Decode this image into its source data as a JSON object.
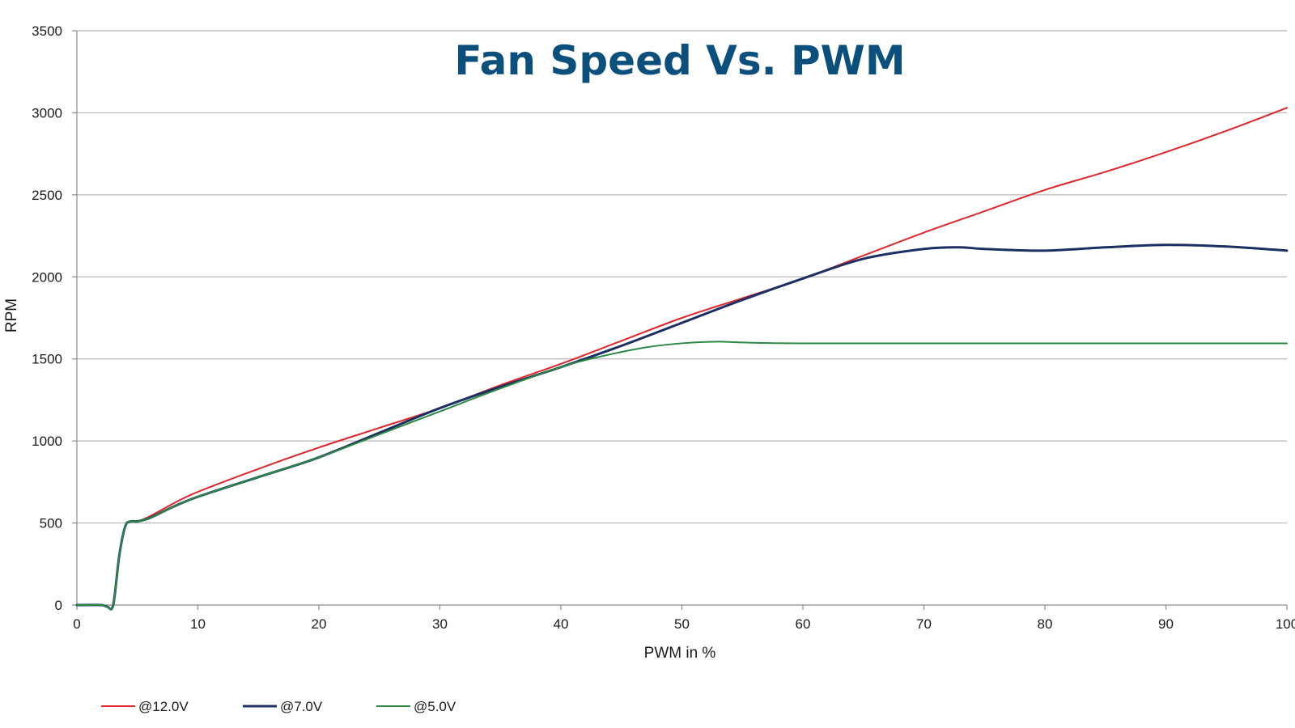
{
  "chart_data": {
    "type": "line",
    "title": "Fan Speed Vs. PWM",
    "xlabel": "PWM in %",
    "ylabel": "RPM",
    "xlim": [
      0,
      100
    ],
    "ylim": [
      0,
      3500
    ],
    "xticks": [
      0,
      10,
      20,
      30,
      40,
      50,
      60,
      70,
      80,
      90,
      100
    ],
    "yticks": [
      0,
      500,
      1000,
      1500,
      2000,
      2500,
      3000,
      3500
    ],
    "grid": "horizontal",
    "legend_position": "bottom-left",
    "series": [
      {
        "name": "@12.0V",
        "color": "#e0262b",
        "points": [
          [
            0,
            0
          ],
          [
            2,
            0
          ],
          [
            2.5,
            -10
          ],
          [
            3,
            0
          ],
          [
            3.5,
            300
          ],
          [
            4,
            480
          ],
          [
            4.5,
            510
          ],
          [
            5,
            510
          ],
          [
            6,
            540
          ],
          [
            8,
            620
          ],
          [
            10,
            690
          ],
          [
            15,
            830
          ],
          [
            20,
            960
          ],
          [
            25,
            1080
          ],
          [
            30,
            1200
          ],
          [
            35,
            1340
          ],
          [
            40,
            1470
          ],
          [
            45,
            1610
          ],
          [
            50,
            1750
          ],
          [
            55,
            1870
          ],
          [
            60,
            1990
          ],
          [
            65,
            2130
          ],
          [
            70,
            2270
          ],
          [
            75,
            2400
          ],
          [
            80,
            2530
          ],
          [
            85,
            2640
          ],
          [
            90,
            2760
          ],
          [
            95,
            2890
          ],
          [
            100,
            3030
          ]
        ]
      },
      {
        "name": "@7.0V",
        "color": "#1c2f63",
        "points": [
          [
            0,
            0
          ],
          [
            2,
            0
          ],
          [
            2.5,
            -10
          ],
          [
            3,
            0
          ],
          [
            3.5,
            300
          ],
          [
            4,
            480
          ],
          [
            4.5,
            510
          ],
          [
            5,
            510
          ],
          [
            6,
            530
          ],
          [
            8,
            600
          ],
          [
            10,
            660
          ],
          [
            15,
            780
          ],
          [
            20,
            900
          ],
          [
            25,
            1050
          ],
          [
            30,
            1200
          ],
          [
            35,
            1330
          ],
          [
            40,
            1450
          ],
          [
            45,
            1580
          ],
          [
            50,
            1720
          ],
          [
            55,
            1860
          ],
          [
            60,
            1990
          ],
          [
            65,
            2110
          ],
          [
            70,
            2170
          ],
          [
            73,
            2180
          ],
          [
            75,
            2170
          ],
          [
            80,
            2160
          ],
          [
            85,
            2180
          ],
          [
            90,
            2195
          ],
          [
            95,
            2185
          ],
          [
            100,
            2160
          ]
        ]
      },
      {
        "name": "@5.0V",
        "color": "#2a8a43",
        "points": [
          [
            0,
            0
          ],
          [
            2,
            0
          ],
          [
            2.5,
            -10
          ],
          [
            3,
            0
          ],
          [
            3.5,
            300
          ],
          [
            4,
            480
          ],
          [
            4.5,
            510
          ],
          [
            5,
            510
          ],
          [
            6,
            530
          ],
          [
            8,
            600
          ],
          [
            10,
            660
          ],
          [
            15,
            780
          ],
          [
            20,
            900
          ],
          [
            25,
            1040
          ],
          [
            30,
            1180
          ],
          [
            35,
            1320
          ],
          [
            40,
            1450
          ],
          [
            43,
            1510
          ],
          [
            47,
            1570
          ],
          [
            50,
            1595
          ],
          [
            53,
            1605
          ],
          [
            55,
            1600
          ],
          [
            60,
            1595
          ],
          [
            70,
            1595
          ],
          [
            80,
            1595
          ],
          [
            90,
            1595
          ],
          [
            100,
            1595
          ]
        ]
      }
    ]
  }
}
